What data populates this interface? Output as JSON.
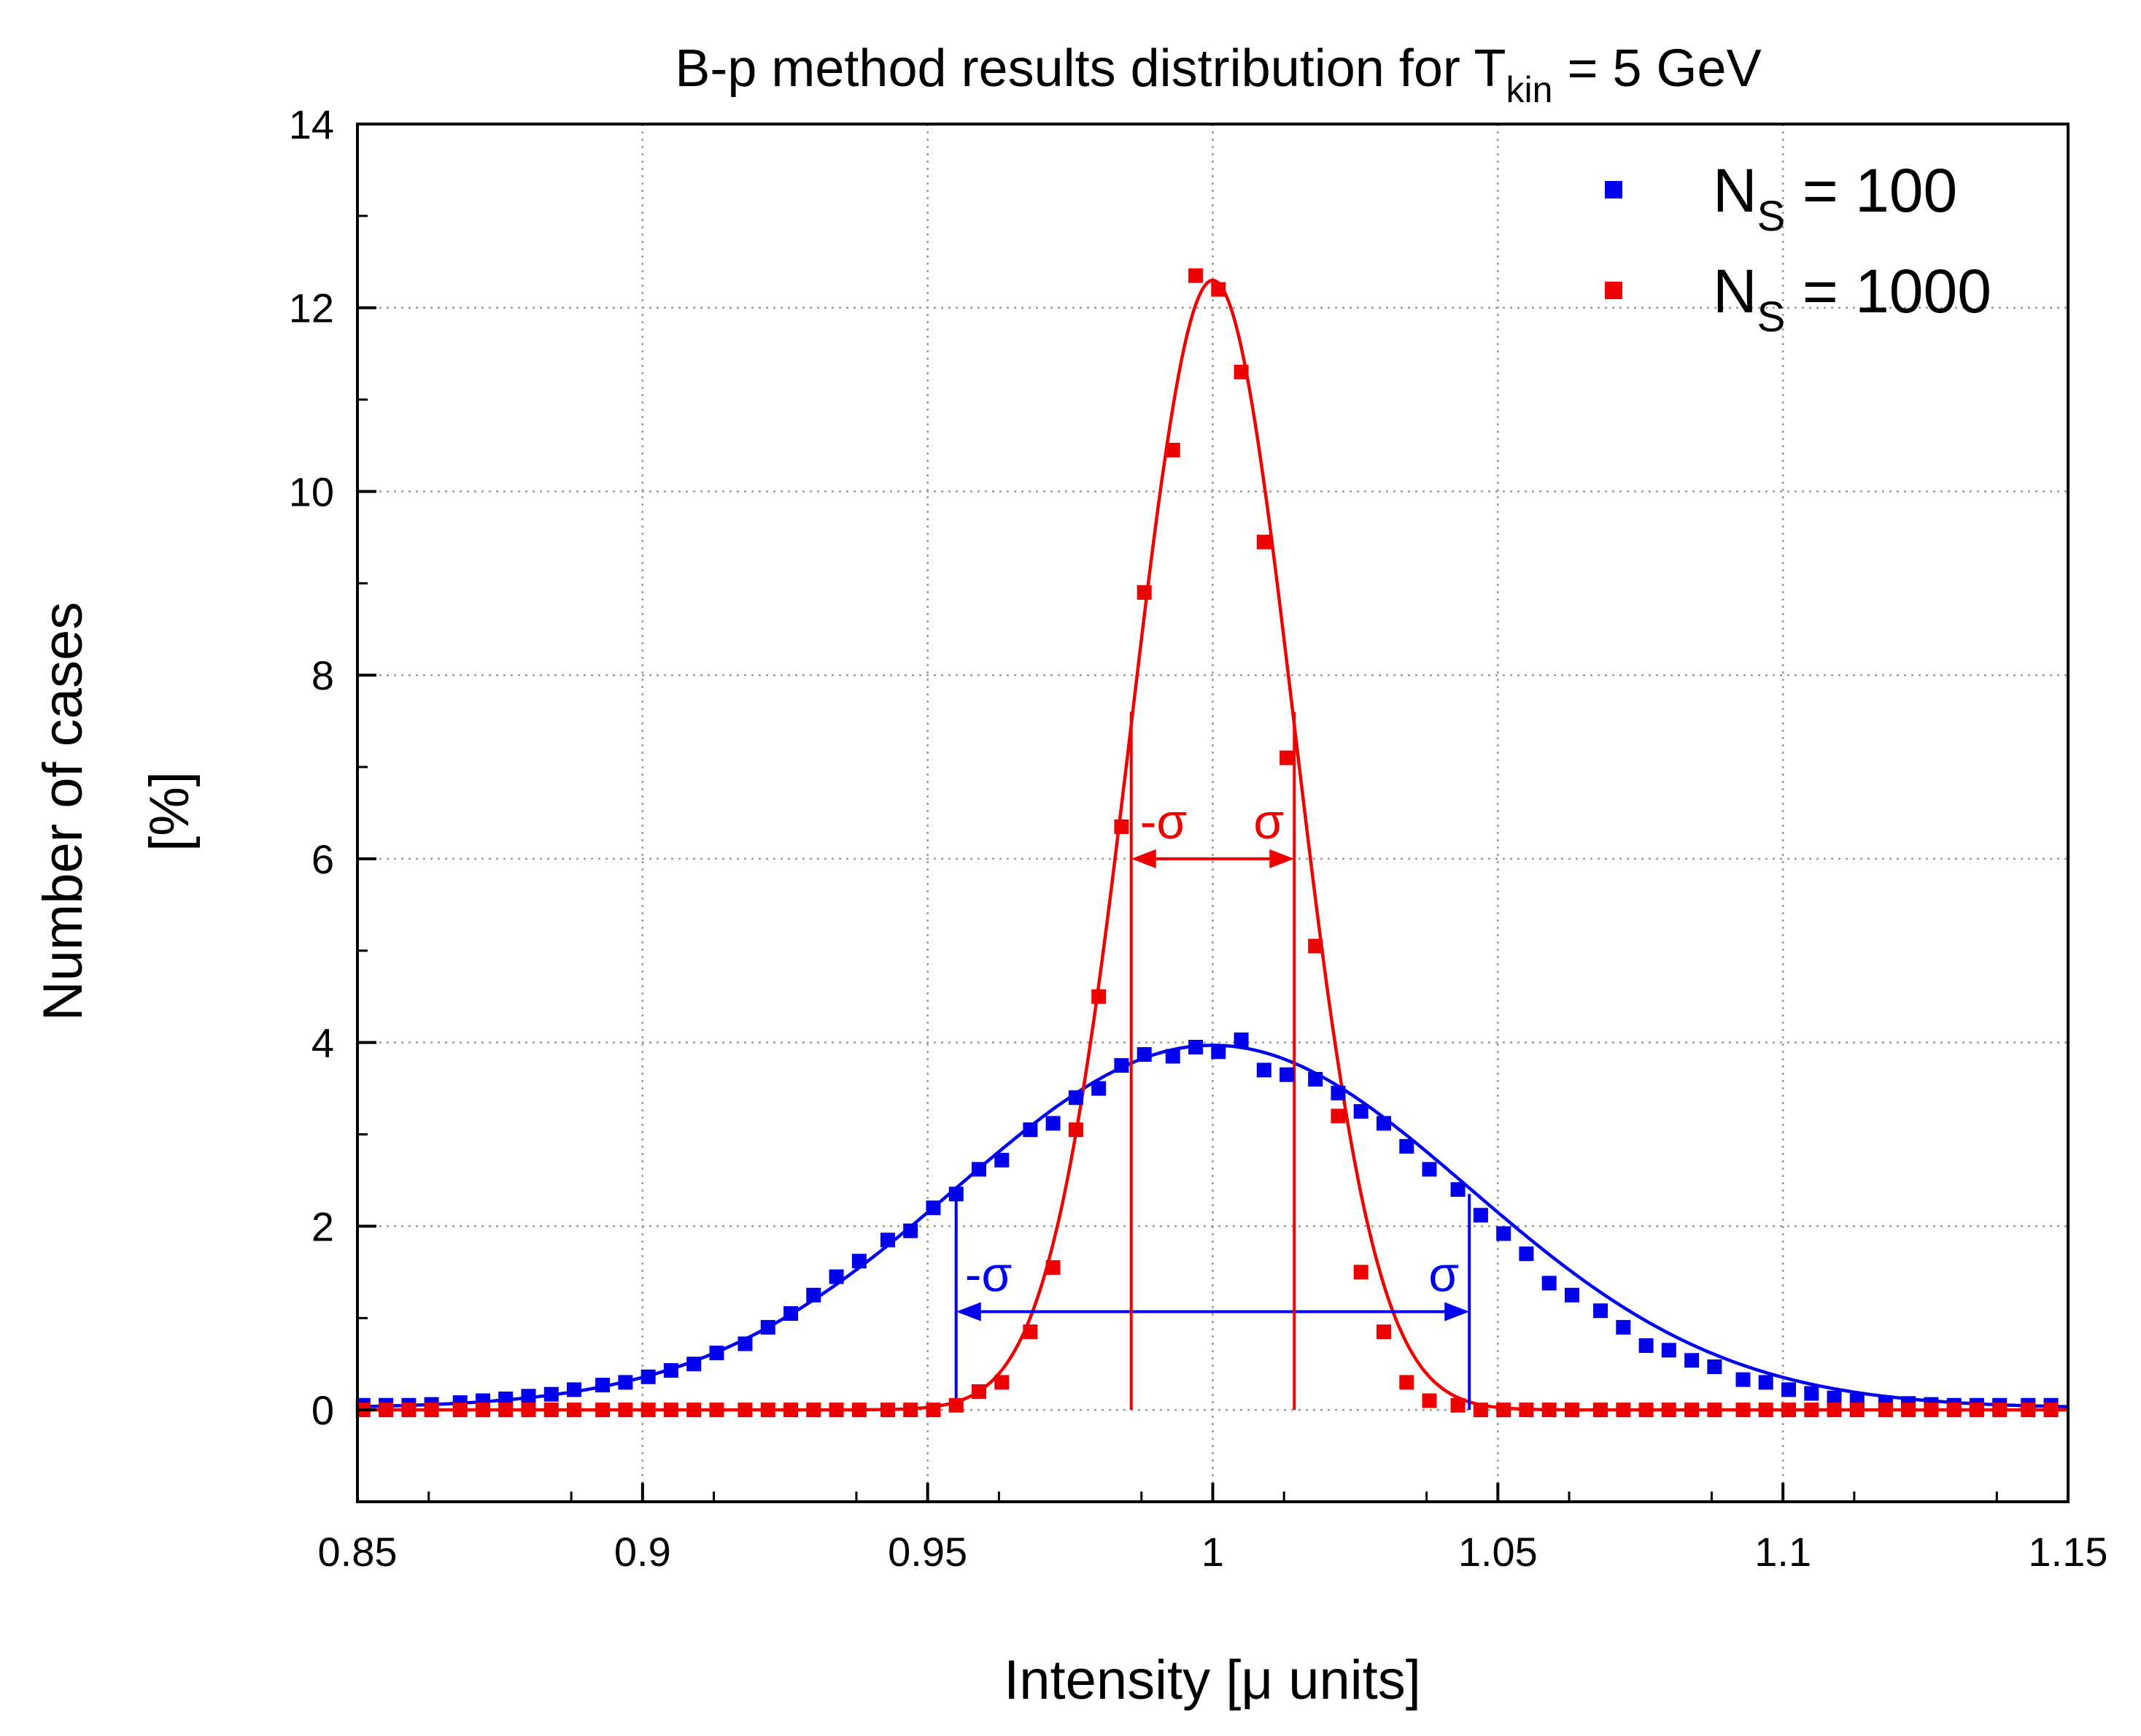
{
  "chart_data": {
    "type": "scatter",
    "title": {
      "prefix": "B-p method results distribution for T",
      "subscript": "kin",
      "suffix": " = 5 GeV"
    },
    "xlabel": "Intensity [μ units]",
    "ylabel_line1": "Number of cases",
    "ylabel_line2": "[%]",
    "xlim": [
      0.85,
      1.15
    ],
    "ylim": [
      -1,
      14
    ],
    "x_ticks": [
      0.85,
      0.9,
      0.95,
      1,
      1.05,
      1.1,
      1.15
    ],
    "x_tick_labels": [
      "0.85",
      "0.9",
      "0.95",
      "1",
      "1.05",
      "1.1",
      "1.15"
    ],
    "y_ticks": [
      0,
      2,
      4,
      6,
      8,
      10,
      12,
      14
    ],
    "y_tick_labels": [
      "0",
      "2",
      "4",
      "6",
      "8",
      "10",
      "12",
      "14"
    ],
    "grid": true,
    "legend_position": "top-right",
    "series": [
      {
        "name_main": "N",
        "name_sub": "S",
        "name_rest": " = 100",
        "color": "#0000ee",
        "marker": "square",
        "fit": "gaussian",
        "x": [
          0.851,
          0.855,
          0.859,
          0.863,
          0.868,
          0.872,
          0.876,
          0.88,
          0.884,
          0.888,
          0.893,
          0.897,
          0.901,
          0.905,
          0.909,
          0.913,
          0.918,
          0.922,
          0.926,
          0.93,
          0.934,
          0.938,
          0.943,
          0.947,
          0.951,
          0.955,
          0.959,
          0.963,
          0.968,
          0.972,
          0.976,
          0.98,
          0.984,
          0.988,
          0.993,
          0.997,
          1.001,
          1.005,
          1.009,
          1.013,
          1.018,
          1.022,
          1.026,
          1.03,
          1.034,
          1.038,
          1.043,
          1.047,
          1.051,
          1.055,
          1.059,
          1.063,
          1.068,
          1.072,
          1.076,
          1.08,
          1.084,
          1.088,
          1.093,
          1.097,
          1.101,
          1.105,
          1.109,
          1.113,
          1.118,
          1.122,
          1.126,
          1.13,
          1.134,
          1.138,
          1.143,
          1.147
        ],
        "y": [
          0.05,
          0.05,
          0.05,
          0.06,
          0.08,
          0.1,
          0.12,
          0.15,
          0.17,
          0.22,
          0.27,
          0.3,
          0.36,
          0.43,
          0.5,
          0.62,
          0.72,
          0.9,
          1.05,
          1.25,
          1.45,
          1.62,
          1.85,
          1.95,
          2.2,
          2.35,
          2.62,
          2.72,
          3.05,
          3.12,
          3.4,
          3.5,
          3.75,
          3.87,
          3.85,
          3.95,
          3.9,
          4.03,
          3.7,
          3.65,
          3.6,
          3.45,
          3.25,
          3.12,
          2.87,
          2.62,
          2.4,
          2.12,
          1.92,
          1.7,
          1.38,
          1.25,
          1.08,
          0.9,
          0.7,
          0.65,
          0.54,
          0.47,
          0.33,
          0.3,
          0.22,
          0.18,
          0.13,
          0.1,
          0.08,
          0.07,
          0.06,
          0.05,
          0.05,
          0.05,
          0.05,
          0.05
        ],
        "fit_mean": 1.0,
        "fit_sigma": 0.045,
        "fit_amplitude": 3.95,
        "fit_offset": 0.02,
        "sigma_range": [
          0.955,
          1.045
        ],
        "sigma_arrow_y": 1.07,
        "sigma_top_y": 2.35,
        "minus_sigma_label": "-σ",
        "sigma_label": "σ"
      },
      {
        "name_main": "N",
        "name_sub": "S",
        "name_rest": " = 1000",
        "color": "#ee0000",
        "marker": "square",
        "fit": "gaussian",
        "x": [
          0.851,
          0.855,
          0.859,
          0.863,
          0.868,
          0.872,
          0.876,
          0.88,
          0.884,
          0.888,
          0.893,
          0.897,
          0.901,
          0.905,
          0.909,
          0.913,
          0.918,
          0.922,
          0.926,
          0.93,
          0.934,
          0.938,
          0.943,
          0.947,
          0.951,
          0.955,
          0.959,
          0.963,
          0.968,
          0.972,
          0.976,
          0.98,
          0.984,
          0.988,
          0.993,
          0.997,
          1.001,
          1.005,
          1.009,
          1.013,
          1.018,
          1.022,
          1.026,
          1.03,
          1.034,
          1.038,
          1.043,
          1.047,
          1.051,
          1.055,
          1.059,
          1.063,
          1.068,
          1.072,
          1.076,
          1.08,
          1.084,
          1.088,
          1.093,
          1.097,
          1.101,
          1.105,
          1.109,
          1.113,
          1.118,
          1.122,
          1.126,
          1.13,
          1.134,
          1.138,
          1.143,
          1.147
        ],
        "y": [
          0,
          0,
          0,
          0,
          0,
          0,
          0,
          0,
          0,
          0,
          0,
          0,
          0,
          0,
          0,
          0,
          0,
          0,
          0,
          0,
          0,
          0,
          0,
          0,
          0,
          0.05,
          0.2,
          0.3,
          0.85,
          1.55,
          3.05,
          4.5,
          6.35,
          8.9,
          10.45,
          12.35,
          12.2,
          11.3,
          9.45,
          7.1,
          5.05,
          3.2,
          1.5,
          0.85,
          0.3,
          0.1,
          0.05,
          0,
          0,
          0,
          0,
          0,
          0,
          0,
          0,
          0,
          0,
          0,
          0,
          0,
          0,
          0,
          0,
          0,
          0,
          0,
          0,
          0,
          0,
          0,
          0,
          0
        ],
        "fit_mean": 1.0,
        "fit_sigma": 0.0143,
        "fit_amplitude": 12.3,
        "fit_offset": 0.0,
        "sigma_range": [
          0.9857,
          1.0143
        ],
        "sigma_arrow_y": 6.0,
        "sigma_top_y": 7.6,
        "minus_sigma_label": "-σ",
        "sigma_label": "σ"
      }
    ]
  }
}
